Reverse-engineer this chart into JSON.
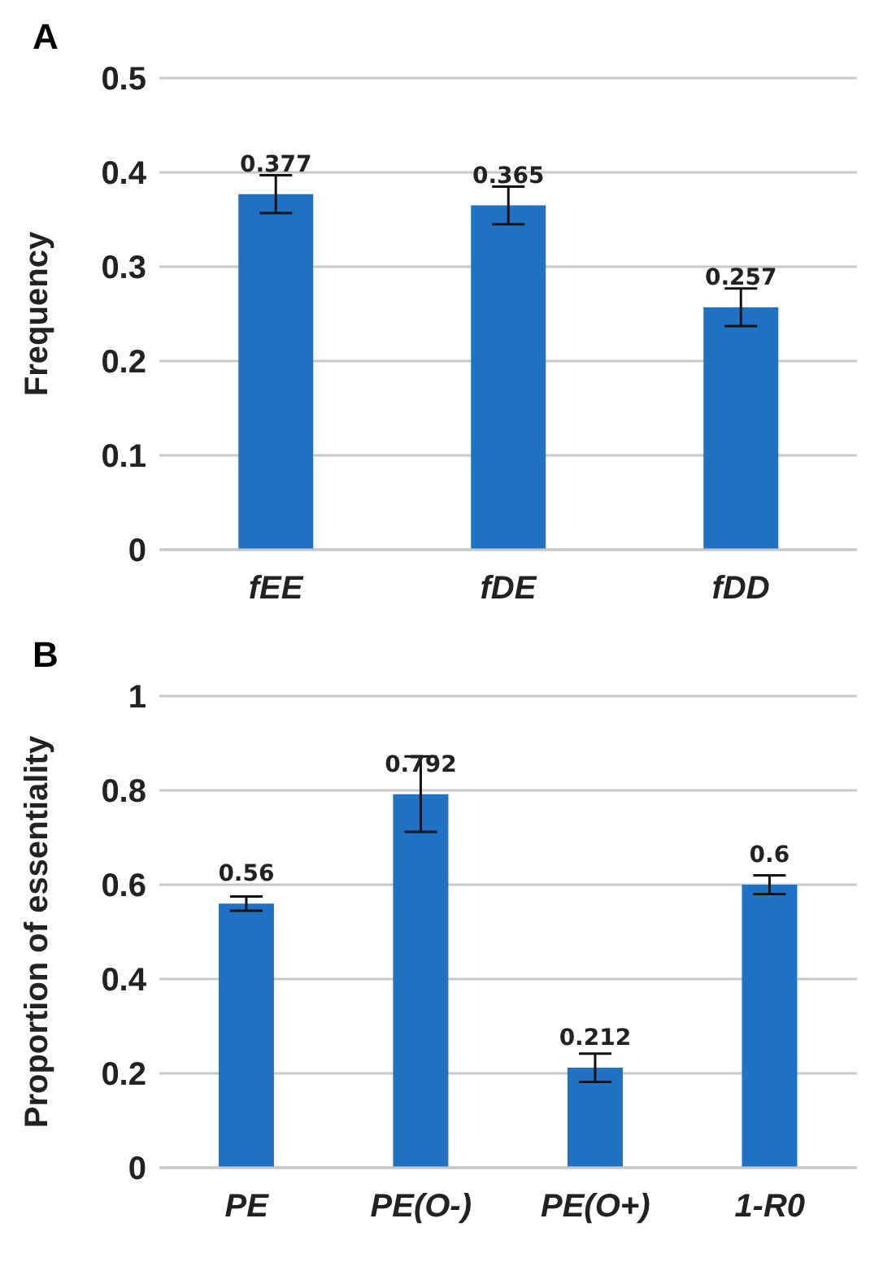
{
  "chart_data": [
    {
      "type": "bar",
      "title": "A",
      "ylabel": "Frequency",
      "categories": [
        "fEE",
        "fDE",
        "fDD"
      ],
      "values": [
        0.377,
        0.365,
        0.257
      ],
      "errors": [
        0.02,
        0.02,
        0.02
      ],
      "color": "#1f72c4",
      "ylim": [
        0,
        0.5
      ],
      "yticks": [
        0,
        0.1,
        0.2,
        0.3,
        0.4,
        0.5
      ],
      "grid": "y",
      "data_labels": true
    },
    {
      "type": "bar",
      "title": "B",
      "ylabel": "Proportion of essentiality",
      "categories": [
        "PE",
        "PE(O-)",
        "PE(O+)",
        "1-R0"
      ],
      "values": [
        0.56,
        0.792,
        0.212,
        0.6
      ],
      "errors": [
        0.015,
        0.08,
        0.03,
        0.02
      ],
      "color": "#1f72c4",
      "ylim": [
        0,
        1
      ],
      "yticks": [
        0,
        0.2,
        0.4,
        0.6,
        0.8,
        1
      ],
      "grid": "y",
      "data_labels": true
    }
  ]
}
